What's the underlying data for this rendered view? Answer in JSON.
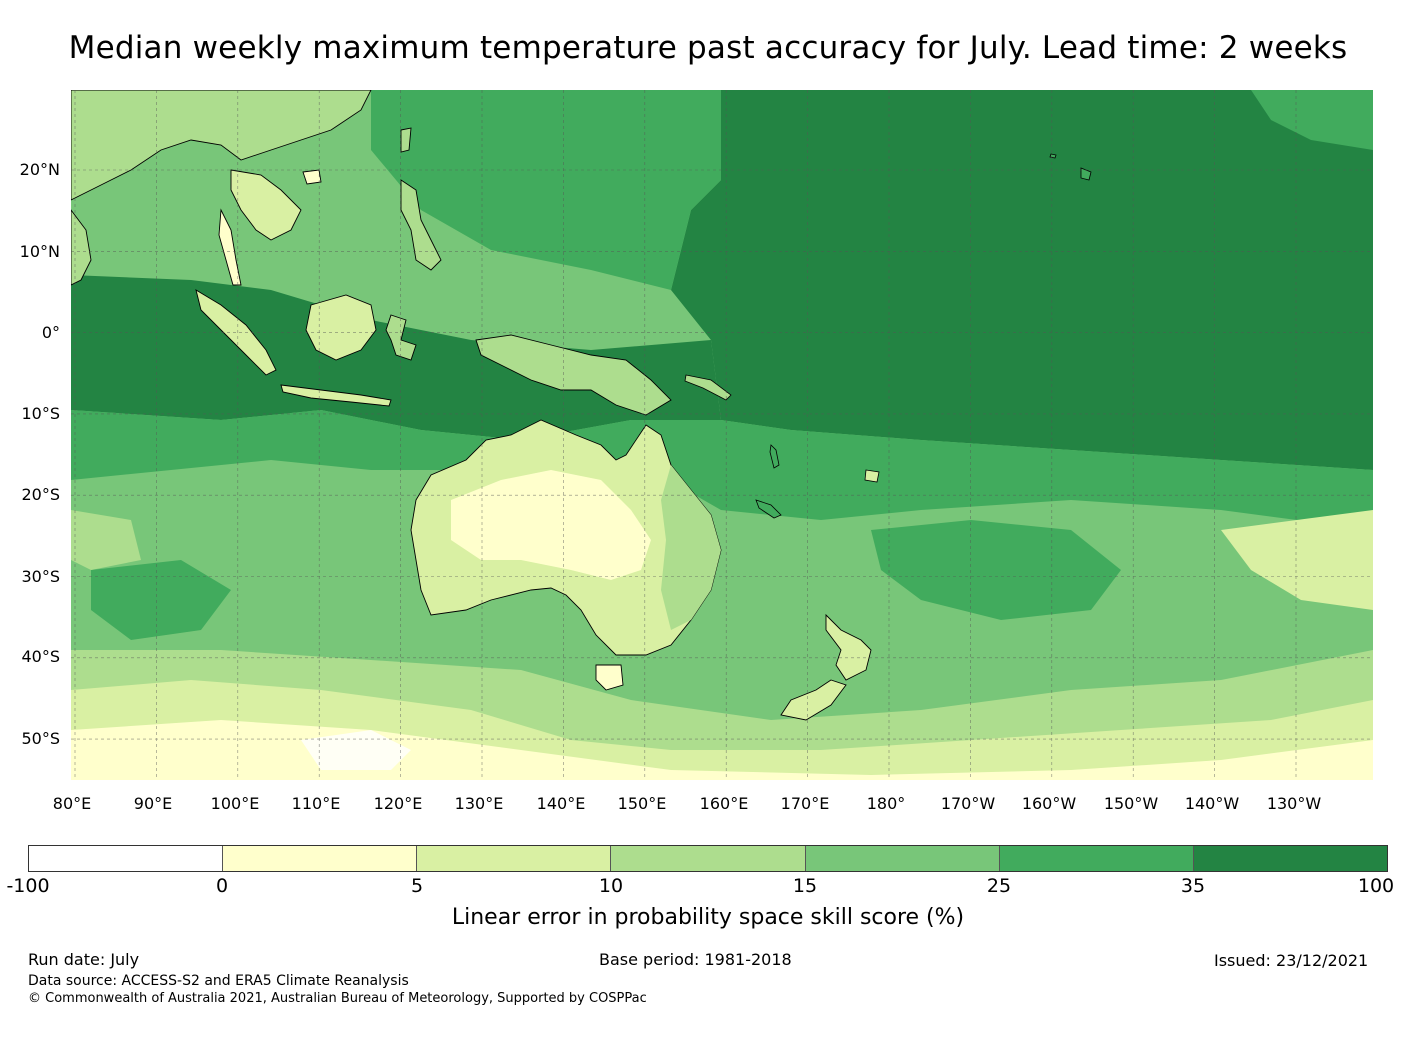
{
  "title": "Median weekly maximum temperature past accuracy for July. Lead time: 2 weeks",
  "map": {
    "lat_ticks": [
      "20°N",
      "10°N",
      "0°",
      "10°S",
      "20°S",
      "30°S",
      "40°S",
      "50°S"
    ],
    "lon_ticks": [
      "80°E",
      "90°E",
      "100°E",
      "110°E",
      "120°E",
      "130°E",
      "140°E",
      "150°E",
      "160°E",
      "170°E",
      "180°",
      "170°W",
      "160°W",
      "150°W",
      "140°W",
      "130°W"
    ],
    "colors": {
      "white": "#ffffff",
      "c0": "#ffffcc",
      "c5": "#d9f0a3",
      "c10": "#addd8e",
      "c15": "#78c679",
      "c25": "#41ab5d",
      "c35": "#238443",
      "coast": "#000000",
      "grid": "#555555"
    }
  },
  "colorbar": {
    "ticks": [
      "-100",
      "0",
      "5",
      "10",
      "15",
      "25",
      "35",
      "100"
    ],
    "colors": [
      "#ffffff",
      "#ffffcc",
      "#d9f0a3",
      "#addd8e",
      "#78c679",
      "#41ab5d",
      "#238443"
    ],
    "label": "Linear error in probability space skill score (%)"
  },
  "footer": {
    "run_date": "Run date: July",
    "base_period": "Base period: 1981-2018",
    "issued": "Issued: 23/12/2021",
    "data_source": "Data source: ACCESS-S2 and ERA5 Climate Reanalysis",
    "copyright": "© Commonwealth of Australia 2021, Australian Bureau of Meteorology, Supported by COSPPac"
  }
}
